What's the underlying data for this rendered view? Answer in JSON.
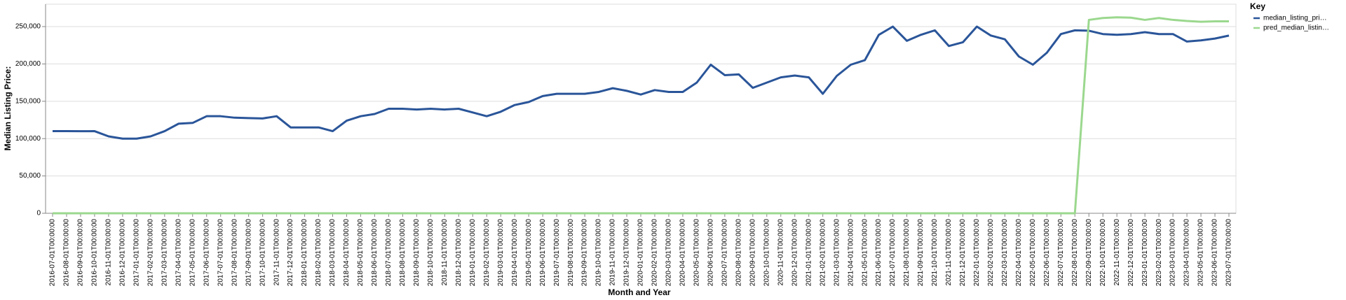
{
  "chart_data": {
    "type": "line",
    "x_label": "Month and Year",
    "y_label": "Median Listing Price:",
    "legend_title": "Key",
    "legend_position": "right",
    "grid": true,
    "categories": [
      "2016-07-01T00:00:00",
      "2016-08-01T00:00:00",
      "2016-09-01T00:00:00",
      "2016-10-01T00:00:00",
      "2016-11-01T00:00:00",
      "2016-12-01T00:00:00",
      "2017-01-01T00:00:00",
      "2017-02-01T00:00:00",
      "2017-03-01T00:00:00",
      "2017-04-01T00:00:00",
      "2017-05-01T00:00:00",
      "2017-06-01T00:00:00",
      "2017-07-01T00:00:00",
      "2017-08-01T00:00:00",
      "2017-09-01T00:00:00",
      "2017-10-01T00:00:00",
      "2017-11-01T00:00:00",
      "2017-12-01T00:00:00",
      "2018-01-01T00:00:00",
      "2018-02-01T00:00:00",
      "2018-03-01T00:00:00",
      "2018-04-01T00:00:00",
      "2018-05-01T00:00:00",
      "2018-06-01T00:00:00",
      "2018-07-01T00:00:00",
      "2018-08-01T00:00:00",
      "2018-09-01T00:00:00",
      "2018-10-01T00:00:00",
      "2018-11-01T00:00:00",
      "2018-12-01T00:00:00",
      "2019-01-01T00:00:00",
      "2019-02-01T00:00:00",
      "2019-03-01T00:00:00",
      "2019-04-01T00:00:00",
      "2019-05-01T00:00:00",
      "2019-06-01T00:00:00",
      "2019-07-01T00:00:00",
      "2019-08-01T00:00:00",
      "2019-09-01T00:00:00",
      "2019-10-01T00:00:00",
      "2019-11-01T00:00:00",
      "2019-12-01T00:00:00",
      "2020-01-01T00:00:00",
      "2020-02-01T00:00:00",
      "2020-03-01T00:00:00",
      "2020-04-01T00:00:00",
      "2020-05-01T00:00:00",
      "2020-06-01T00:00:00",
      "2020-07-01T00:00:00",
      "2020-08-01T00:00:00",
      "2020-09-01T00:00:00",
      "2020-10-01T00:00:00",
      "2020-11-01T00:00:00",
      "2020-12-01T00:00:00",
      "2021-01-01T00:00:00",
      "2021-02-01T00:00:00",
      "2021-03-01T00:00:00",
      "2021-04-01T00:00:00",
      "2021-05-01T00:00:00",
      "2021-06-01T00:00:00",
      "2021-07-01T00:00:00",
      "2021-08-01T00:00:00",
      "2021-09-01T00:00:00",
      "2021-10-01T00:00:00",
      "2021-11-01T00:00:00",
      "2021-12-01T00:00:00",
      "2022-01-01T00:00:00",
      "2022-02-01T00:00:00",
      "2022-03-01T00:00:00",
      "2022-04-01T00:00:00",
      "2022-05-01T00:00:00",
      "2022-06-01T00:00:00",
      "2022-07-01T00:00:00",
      "2022-08-01T00:00:00",
      "2022-09-01T00:00:00",
      "2022-10-01T00:00:00",
      "2022-11-01T00:00:00",
      "2022-12-01T00:00:00",
      "2023-01-01T00:00:00",
      "2023-02-01T00:00:00",
      "2023-03-01T00:00:00",
      "2023-04-01T00:00:00",
      "2023-05-01T00:00:00",
      "2023-06-01T00:00:00",
      "2023-07-01T00:00:00"
    ],
    "series": [
      {
        "name": "median_listing_pri…",
        "color": "#2a5599",
        "values": [
          110000,
          110000,
          109900,
          110000,
          103000,
          100000,
          100000,
          103000,
          110000,
          120000,
          121000,
          130000,
          130000,
          128000,
          127500,
          127000,
          130000,
          115000,
          115000,
          115000,
          110000,
          124000,
          130000,
          133000,
          140000,
          140000,
          139000,
          140000,
          139000,
          140000,
          135000,
          130000,
          136000,
          145000,
          149000,
          157000,
          160000,
          160000,
          160000,
          162500,
          167500,
          164000,
          159000,
          165000,
          162500,
          162500,
          175000,
          199000,
          185000,
          186000,
          168000,
          175000,
          182000,
          184500,
          182000,
          160000,
          184000,
          199000,
          205000,
          239000,
          250000,
          231000,
          239000,
          245000,
          224000,
          229000,
          250000,
          238000,
          233000,
          210000,
          199000,
          215000,
          240000,
          245000,
          244500,
          240000,
          239000,
          240000,
          242500,
          240000,
          240000,
          230000,
          231500,
          234000,
          238000
        ]
      },
      {
        "name": "pred_median_listin…",
        "color": "#9bd88e",
        "values": [
          0,
          0,
          0,
          0,
          0,
          0,
          0,
          0,
          0,
          0,
          0,
          0,
          0,
          0,
          0,
          0,
          0,
          0,
          0,
          0,
          0,
          0,
          0,
          0,
          0,
          0,
          0,
          0,
          0,
          0,
          0,
          0,
          0,
          0,
          0,
          0,
          0,
          0,
          0,
          0,
          0,
          0,
          0,
          0,
          0,
          0,
          0,
          0,
          0,
          0,
          0,
          0,
          0,
          0,
          0,
          0,
          0,
          0,
          0,
          0,
          0,
          0,
          0,
          0,
          0,
          0,
          0,
          0,
          0,
          0,
          0,
          0,
          0,
          0,
          259000,
          261500,
          262500,
          262000,
          259000,
          261500,
          259000,
          257500,
          256500,
          257000,
          257000
        ]
      }
    ],
    "ylim": [
      0,
      280000
    ],
    "yticks": [
      0,
      {
        "value": 50000,
        "label": "50,000"
      },
      {
        "value": 100000,
        "label": "100,000"
      },
      {
        "value": 150000,
        "label": "150,000"
      },
      {
        "value": 200000,
        "label": "200,000"
      },
      {
        "value": 250000,
        "label": "250,000"
      }
    ]
  }
}
